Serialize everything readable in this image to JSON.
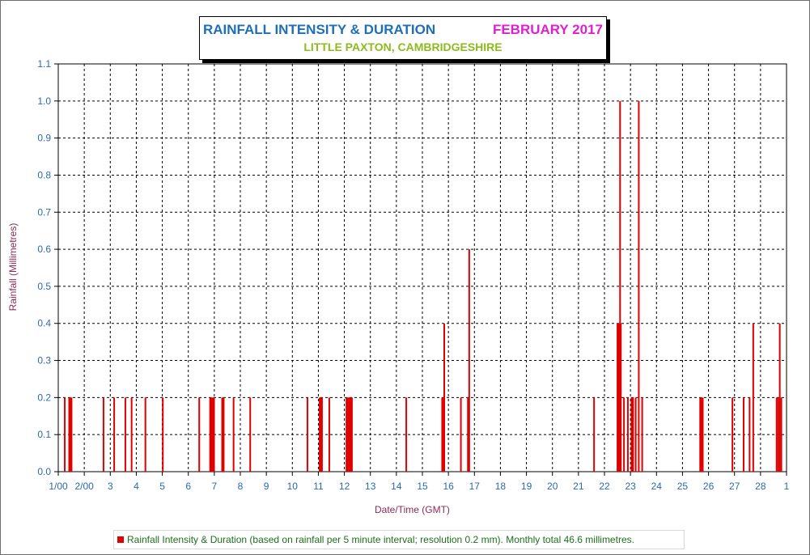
{
  "chart_data": {
    "type": "bar",
    "title": "RAINFALL INTENSITY & DURATION",
    "period": "FEBRUARY 2017",
    "subtitle": "LITTLE PAXTON, CAMBRIDGESHIRE",
    "xlabel": "Date/Time (GMT)",
    "ylabel": "Rainfall (Millimetres)",
    "ylim": [
      0,
      1.1
    ],
    "yticks": [
      "0.0",
      "0.1",
      "0.2",
      "0.3",
      "0.4",
      "0.5",
      "0.6",
      "0.7",
      "0.8",
      "0.9",
      "1.0",
      "1.1"
    ],
    "xlim": [
      1,
      29
    ],
    "xticks": [
      {
        "x": 1,
        "label": "1/00"
      },
      {
        "x": 2,
        "label": "2/00"
      },
      {
        "x": 3,
        "label": "3"
      },
      {
        "x": 4,
        "label": "4"
      },
      {
        "x": 5,
        "label": "5"
      },
      {
        "x": 6,
        "label": "6"
      },
      {
        "x": 7,
        "label": "7"
      },
      {
        "x": 8,
        "label": "8"
      },
      {
        "x": 9,
        "label": "9"
      },
      {
        "x": 10,
        "label": "10"
      },
      {
        "x": 11,
        "label": "11"
      },
      {
        "x": 12,
        "label": "12"
      },
      {
        "x": 13,
        "label": "13"
      },
      {
        "x": 14,
        "label": "14"
      },
      {
        "x": 15,
        "label": "15"
      },
      {
        "x": 16,
        "label": "16"
      },
      {
        "x": 17,
        "label": "17"
      },
      {
        "x": 18,
        "label": "18"
      },
      {
        "x": 19,
        "label": "19"
      },
      {
        "x": 20,
        "label": "20"
      },
      {
        "x": 21,
        "label": "21"
      },
      {
        "x": 22,
        "label": "22"
      },
      {
        "x": 23,
        "label": "23"
      },
      {
        "x": 24,
        "label": "24"
      },
      {
        "x": 25,
        "label": "25"
      },
      {
        "x": 26,
        "label": "26"
      },
      {
        "x": 27,
        "label": "27"
      },
      {
        "x": 28,
        "label": "28"
      },
      {
        "x": 29,
        "label": "1"
      }
    ],
    "grid": true,
    "bar_color": "#e00000",
    "series": [
      {
        "name": "Rainfall Intensity & Duration (based on rainfall per 5 minute interval; resolution 0.2 mm). Monthly total 46.6 millimetres.",
        "points": [
          {
            "x": 1.25,
            "y": 0.2
          },
          {
            "x": 1.42,
            "y": 0.2
          },
          {
            "x": 1.45,
            "y": 0.2
          },
          {
            "x": 1.48,
            "y": 0.2
          },
          {
            "x": 1.51,
            "y": 0.2
          },
          {
            "x": 2.74,
            "y": 0.2
          },
          {
            "x": 3.15,
            "y": 0.2
          },
          {
            "x": 3.58,
            "y": 0.2
          },
          {
            "x": 3.82,
            "y": 0.2
          },
          {
            "x": 4.35,
            "y": 0.2
          },
          {
            "x": 5.02,
            "y": 0.2
          },
          {
            "x": 6.42,
            "y": 0.2
          },
          {
            "x": 6.84,
            "y": 0.2
          },
          {
            "x": 6.87,
            "y": 0.2
          },
          {
            "x": 6.9,
            "y": 0.2
          },
          {
            "x": 6.93,
            "y": 0.2
          },
          {
            "x": 6.96,
            "y": 0.2
          },
          {
            "x": 6.99,
            "y": 0.2
          },
          {
            "x": 7.3,
            "y": 0.2
          },
          {
            "x": 7.33,
            "y": 0.2
          },
          {
            "x": 7.36,
            "y": 0.2
          },
          {
            "x": 7.74,
            "y": 0.2
          },
          {
            "x": 8.38,
            "y": 0.2
          },
          {
            "x": 10.58,
            "y": 0.2
          },
          {
            "x": 11.05,
            "y": 0.2
          },
          {
            "x": 11.08,
            "y": 0.2
          },
          {
            "x": 11.11,
            "y": 0.2
          },
          {
            "x": 11.14,
            "y": 0.2
          },
          {
            "x": 11.42,
            "y": 0.2
          },
          {
            "x": 12.08,
            "y": 0.2
          },
          {
            "x": 12.11,
            "y": 0.2
          },
          {
            "x": 12.14,
            "y": 0.2
          },
          {
            "x": 12.17,
            "y": 0.2
          },
          {
            "x": 12.2,
            "y": 0.2
          },
          {
            "x": 12.23,
            "y": 0.2
          },
          {
            "x": 12.26,
            "y": 0.2
          },
          {
            "x": 12.29,
            "y": 0.2
          },
          {
            "x": 14.38,
            "y": 0.2
          },
          {
            "x": 15.76,
            "y": 0.2
          },
          {
            "x": 15.79,
            "y": 0.2
          },
          {
            "x": 15.82,
            "y": 0.2
          },
          {
            "x": 15.84,
            "y": 0.4
          },
          {
            "x": 16.48,
            "y": 0.2
          },
          {
            "x": 16.75,
            "y": 0.2
          },
          {
            "x": 16.8,
            "y": 0.6
          },
          {
            "x": 21.6,
            "y": 0.2
          },
          {
            "x": 22.5,
            "y": 0.4
          },
          {
            "x": 22.53,
            "y": 0.4
          },
          {
            "x": 22.56,
            "y": 0.4
          },
          {
            "x": 22.6,
            "y": 1.0
          },
          {
            "x": 22.63,
            "y": 0.4
          },
          {
            "x": 22.75,
            "y": 0.2
          },
          {
            "x": 22.9,
            "y": 0.2
          },
          {
            "x": 23.04,
            "y": 0.2
          },
          {
            "x": 23.07,
            "y": 0.2
          },
          {
            "x": 23.1,
            "y": 0.2
          },
          {
            "x": 23.2,
            "y": 0.2
          },
          {
            "x": 23.32,
            "y": 1.0
          },
          {
            "x": 23.45,
            "y": 0.2
          },
          {
            "x": 25.68,
            "y": 0.2
          },
          {
            "x": 25.73,
            "y": 0.2
          },
          {
            "x": 25.78,
            "y": 0.2
          },
          {
            "x": 26.92,
            "y": 0.2
          },
          {
            "x": 27.35,
            "y": 0.2
          },
          {
            "x": 27.58,
            "y": 0.2
          },
          {
            "x": 27.72,
            "y": 0.4
          },
          {
            "x": 28.62,
            "y": 0.2
          },
          {
            "x": 28.68,
            "y": 0.2
          },
          {
            "x": 28.74,
            "y": 0.4
          },
          {
            "x": 28.8,
            "y": 0.2
          }
        ]
      }
    ]
  }
}
